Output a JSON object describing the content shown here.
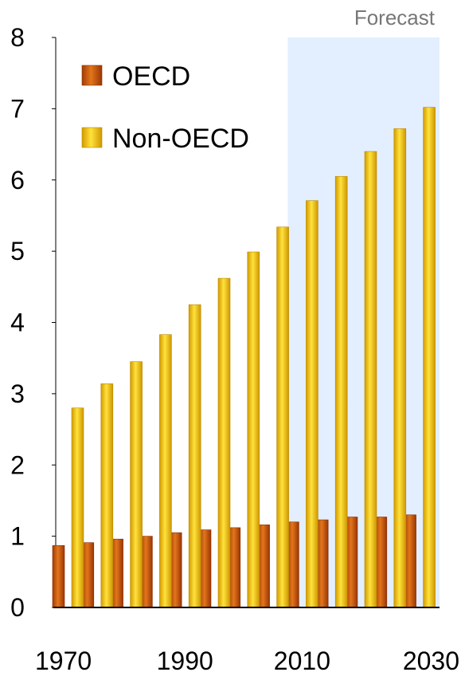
{
  "chart_data": {
    "type": "bar",
    "x": [
      1970,
      1975,
      1980,
      1985,
      1990,
      1995,
      2000,
      2005,
      2010,
      2015,
      2020,
      2025,
      2030
    ],
    "series": [
      {
        "name": "OECD",
        "color": "#c0530c",
        "values": [
          0.87,
          0.91,
          0.96,
          1.0,
          1.05,
          1.09,
          1.12,
          1.16,
          1.2,
          1.23,
          1.27,
          1.27,
          1.3
        ]
      },
      {
        "name": "Non-OECD",
        "color": "#f0c000",
        "values": [
          2.8,
          3.14,
          3.45,
          3.83,
          4.25,
          4.62,
          4.99,
          5.34,
          5.71,
          6.05,
          6.4,
          6.72,
          7.02
        ]
      }
    ],
    "x_tick_labels": [
      "1970",
      "1990",
      "2010",
      "2030"
    ],
    "y_ticks": [
      "0",
      "1",
      "2",
      "3",
      "4",
      "5",
      "6",
      "7",
      "8"
    ],
    "ylim": [
      0,
      8
    ],
    "forecast": {
      "label": "Forecast",
      "start_year": 2010,
      "shade_color": "#e3efff"
    },
    "legend": {
      "position": "top-left",
      "items": [
        "OECD",
        "Non-OECD"
      ]
    },
    "title": "",
    "xlabel": "",
    "ylabel": "",
    "grid": false
  }
}
